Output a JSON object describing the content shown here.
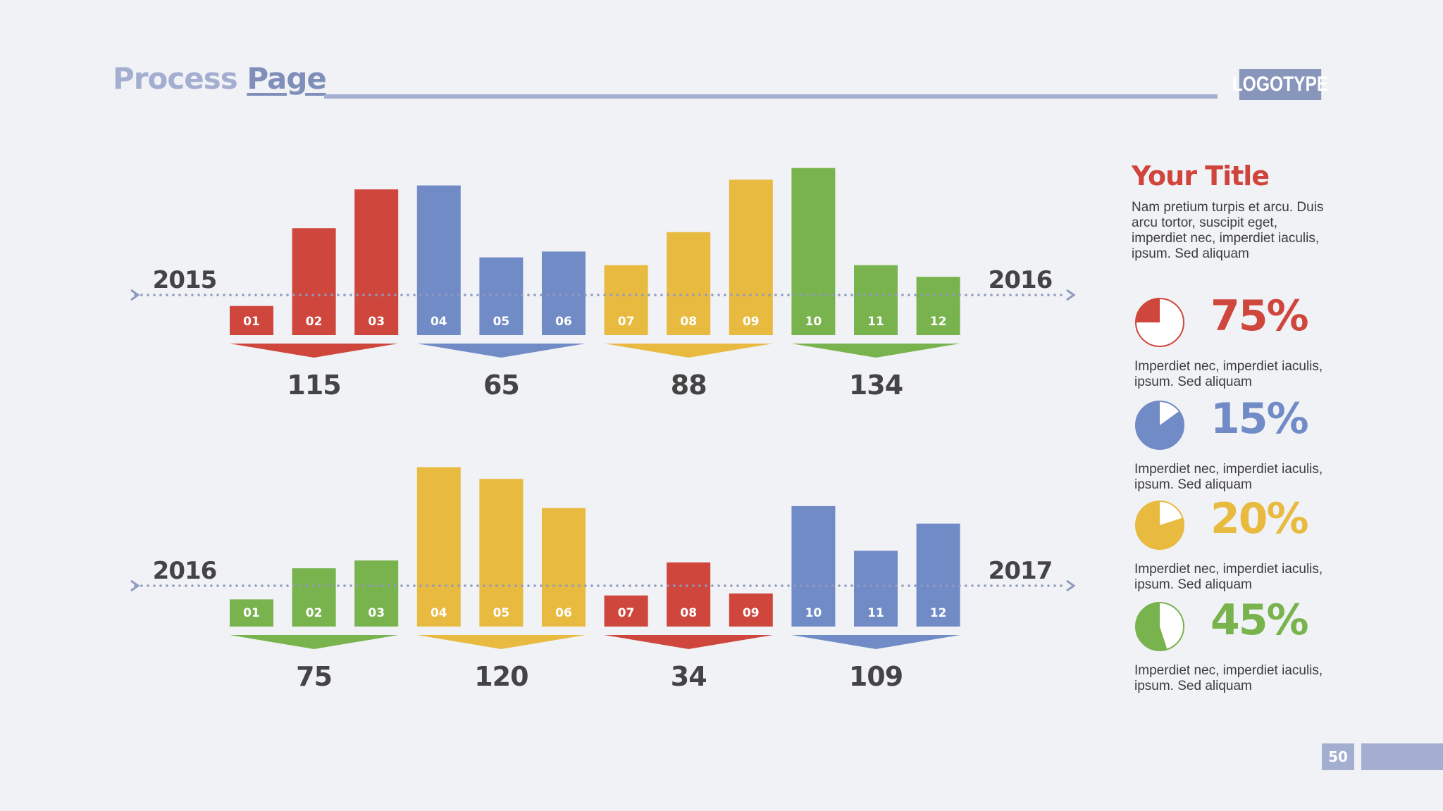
{
  "header": {
    "title_part1": "Process ",
    "title_part2": "Page",
    "logo": "LOGOTYPE"
  },
  "colors": {
    "red": "#cf463c",
    "blue": "#718bc6",
    "yellow": "#e8ba40",
    "green": "#79b34d",
    "axis": "#8f9bc0",
    "dark": "#444444"
  },
  "chart_data": [
    {
      "type": "bar",
      "title": "",
      "start_label": "2015",
      "end_label": "2016",
      "categories": [
        "01",
        "02",
        "03",
        "04",
        "05",
        "06",
        "07",
        "08",
        "09",
        "10",
        "11",
        "12"
      ],
      "values": [
        15,
        55,
        75,
        77,
        40,
        43,
        36,
        53,
        80,
        86,
        36,
        30
      ],
      "colors": [
        "red",
        "red",
        "red",
        "blue",
        "blue",
        "blue",
        "yellow",
        "yellow",
        "yellow",
        "green",
        "green",
        "green"
      ],
      "groups": [
        {
          "total": "115",
          "color": "red"
        },
        {
          "total": "65",
          "color": "blue"
        },
        {
          "total": "88",
          "color": "yellow"
        },
        {
          "total": "134",
          "color": "green"
        }
      ],
      "ylim": [
        0,
        100
      ]
    },
    {
      "type": "bar",
      "title": "",
      "start_label": "2016",
      "end_label": "2017",
      "categories": [
        "01",
        "02",
        "03",
        "04",
        "05",
        "06",
        "07",
        "08",
        "09",
        "10",
        "11",
        "12"
      ],
      "values": [
        14,
        30,
        34,
        82,
        76,
        61,
        16,
        33,
        17,
        62,
        39,
        53
      ],
      "colors": [
        "green",
        "green",
        "green",
        "yellow",
        "yellow",
        "yellow",
        "red",
        "red",
        "red",
        "blue",
        "blue",
        "blue"
      ],
      "groups": [
        {
          "total": "75",
          "color": "green"
        },
        {
          "total": "120",
          "color": "yellow"
        },
        {
          "total": "34",
          "color": "red"
        },
        {
          "total": "109",
          "color": "blue"
        }
      ],
      "ylim": [
        0,
        100
      ]
    }
  ],
  "sidebar": {
    "title": "Your Title",
    "description": "Nam pretium turpis et arcu. Duis arcu tortor, suscipit eget, imperdiet nec, imperdiet iaculis, ipsum. Sed aliquam",
    "stats": [
      {
        "percent_value": 75,
        "label": "75%",
        "color": "red",
        "caption": "Imperdiet nec, imperdiet iaculis, ipsum. Sed aliquam"
      },
      {
        "percent_value": 15,
        "label": "15%",
        "color": "blue",
        "caption": "Imperdiet nec, imperdiet iaculis, ipsum. Sed aliquam"
      },
      {
        "percent_value": 20,
        "label": "20%",
        "color": "yellow",
        "caption": "Imperdiet nec, imperdiet iaculis, ipsum. Sed aliquam"
      },
      {
        "percent_value": 45,
        "label": "45%",
        "color": "green",
        "caption": "Imperdiet nec, imperdiet iaculis, ipsum. Sed aliquam"
      }
    ]
  },
  "footer": {
    "page_number": "50"
  }
}
